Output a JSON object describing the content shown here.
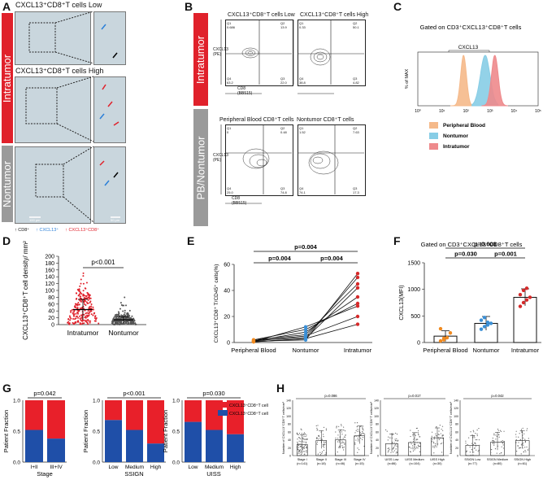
{
  "panels": {
    "A": {
      "letter": "A",
      "sidebar_intratumor": "Intratumor",
      "sidebar_nontumor": "Nontumor",
      "title_low": "CXCL13⁺CD8⁺T cells Low",
      "title_high": "CXCL13⁺CD8⁺T cells High",
      "legend": [
        "CD8⁺",
        "CXCL13⁺",
        "CXCL13⁺CD8⁺"
      ],
      "legend_colors": [
        "#000000",
        "#2a7fd8",
        "#e0212b"
      ],
      "scalebar_large": "100 μm",
      "scalebar_small": "50 μm"
    },
    "B": {
      "letter": "B",
      "sidebar_intratumor": "Intratumor",
      "sidebar_pb": "PB/Nontumor",
      "plots": [
        {
          "title": "CXCL13⁺CD8⁺T cells Low",
          "q1": "Q1\n0.686",
          "q2": "Q2\n13.9",
          "q3": "Q3\n22.0",
          "q4": "Q4\n63.2"
        },
        {
          "title": "CXCL13⁺CD8⁺T cells High",
          "q1": "Q1\n0.33",
          "q2": "Q2\n50.1",
          "q3": "Q3\n4.82",
          "q4": "Q4\n38.8"
        },
        {
          "title": "Peripheral Blood CD8⁺T cells",
          "q1": "Q1\n0",
          "q2": "Q2\n0.48",
          "q3": "Q3\n74.8",
          "q4": "Q4\n25.0"
        },
        {
          "title": "Nontumor CD8⁺T cells",
          "q1": "Q1\n1.52",
          "q2": "Q2\n7.63",
          "q3": "Q3\n17.3",
          "q4": "Q4\n74.1"
        }
      ],
      "y_axis": "CXCL13\n(PE)",
      "x_axis": "CD8\n(BB515)"
    }
  },
  "chart_data": [
    {
      "panel": "C",
      "type": "histogram",
      "title": "Gated on CD3⁺CXCL13⁺CD8⁺T cells",
      "inner_label": "CXCL13",
      "ylabel": "% of MAX",
      "x_ticks": [
        "10⁰",
        "10¹",
        "10²",
        "10³",
        "10⁴",
        "10⁵"
      ],
      "legend": [
        "Peripheral Blood",
        "Nontumor",
        "Intratumor"
      ],
      "colors": [
        "#f5b98a",
        "#87cde6",
        "#ee8a8c"
      ],
      "peaks_log10": [
        1.9,
        2.8,
        3.2
      ]
    },
    {
      "panel": "D",
      "type": "scatter",
      "categories": [
        "Intratumor",
        "Nontumor"
      ],
      "ylabel": "CXCL13⁺CD8⁺T cell density/ mm²",
      "ylim": [
        0,
        200
      ],
      "yticks": [
        0,
        20,
        40,
        60,
        80,
        100,
        120,
        140,
        160,
        180,
        200
      ],
      "means": [
        44,
        14
      ],
      "sd": [
        30,
        9
      ],
      "pvalue": "p<0.001",
      "colors": [
        "#e0212b",
        "#555555"
      ]
    },
    {
      "panel": "E",
      "type": "line",
      "categories": [
        "Peripheral Blood",
        "Nontumor",
        "Intratumor"
      ],
      "ylabel": "CXCL13⁺CD8⁺ T/CD45⁺ cells(%)",
      "ylim": [
        0,
        60
      ],
      "yticks": [
        0,
        20,
        40,
        60
      ],
      "series": [
        {
          "values": [
            1,
            2,
            53
          ]
        },
        {
          "values": [
            1.5,
            4,
            50
          ]
        },
        {
          "values": [
            2,
            6,
            45
          ]
        },
        {
          "values": [
            0.5,
            3,
            42
          ]
        },
        {
          "values": [
            1,
            8,
            35
          ]
        },
        {
          "values": [
            2,
            10,
            30
          ]
        },
        {
          "values": [
            0.8,
            12,
            28
          ]
        },
        {
          "values": [
            1.2,
            5,
            20
          ]
        },
        {
          "values": [
            0.6,
            3,
            14
          ]
        }
      ],
      "pvalues": [
        "p=0.004",
        "p=0.004",
        "p=0.004"
      ],
      "colors": [
        "#f08a20",
        "#3a8fd6",
        "#d62a2a"
      ]
    },
    {
      "panel": "F",
      "type": "bar",
      "title": "Gated on CD3⁺CXCL13⁺CD8⁺T cells",
      "categories": [
        "Peripheral Blood",
        "Nontumor",
        "Intratumor"
      ],
      "values": [
        120,
        360,
        850
      ],
      "errors": [
        100,
        130,
        160
      ],
      "ylabel": "CXCL13(MFI)",
      "ylim": [
        0,
        1500
      ],
      "yticks": [
        0,
        500,
        1000,
        1500
      ],
      "points": [
        [
          30,
          50,
          90,
          180,
          260,
          80
        ],
        [
          250,
          300,
          330,
          360,
          420,
          470,
          380
        ],
        [
          680,
          750,
          800,
          850,
          900,
          980,
          1020
        ]
      ],
      "pvalues": [
        "p=0.030",
        "p=0.001",
        "p=0.008"
      ],
      "colors": [
        "#f08a20",
        "#3a8fd6",
        "#d62a2a"
      ]
    },
    {
      "panel": "G",
      "type": "stacked-bar",
      "ylabel": "Patient Fraction",
      "legend": [
        "CXCL13⁺CD8⁺T cells High",
        "CXCL13⁺CD8⁺T cells Low"
      ],
      "colors": [
        "#e8202a",
        "#1f4fa8"
      ],
      "groups": [
        {
          "xlabel": "Stage",
          "categories": [
            "I+II",
            "III+IV"
          ],
          "low": [
            52,
            38
          ],
          "pvalue": "p=0.042"
        },
        {
          "xlabel": "SSIGN",
          "categories": [
            "Low",
            "Medium",
            "High"
          ],
          "low": [
            68,
            52,
            30
          ],
          "pvalue": "p<0.001"
        },
        {
          "xlabel": "UISS",
          "categories": [
            "Low",
            "Medium",
            "High"
          ],
          "low": [
            65,
            52,
            45
          ],
          "pvalue": "p=0.030"
        }
      ],
      "yticks": [
        "0.0",
        "0.5",
        "1.0"
      ]
    },
    {
      "panel": "H",
      "type": "scatter-bar",
      "ylabel": "Number of CXCL13⁺CD8⁺T cells/mm²",
      "groups": [
        {
          "categories": [
            "Stage I\n(n=141)",
            "Stage II\n(n=18)",
            "Stage III\n(n=46)",
            "Stage IV\n(n=15)"
          ],
          "means": [
            28,
            38,
            40,
            50
          ],
          "pvalue": "p=0.086"
        },
        {
          "categories": [
            "UISS Low\n(n=86)",
            "UISS Medium\n(n=104)",
            "UISS High\n(n=30)"
          ],
          "means": [
            30,
            33,
            45
          ],
          "pvalue": "p=0.017"
        },
        {
          "categories": [
            "SSIGN Low\n(n=77)",
            "SSIGN Medium\n(n=80)",
            "SSIGN High\n(n=61)"
          ],
          "means": [
            26,
            34,
            38
          ],
          "pvalue": "p=0.042"
        }
      ],
      "yticks": [
        0,
        20,
        40,
        60,
        80,
        100,
        120,
        140
      ]
    }
  ],
  "letters": {
    "C": "C",
    "D": "D",
    "E": "E",
    "F": "F",
    "G": "G",
    "H": "H"
  }
}
